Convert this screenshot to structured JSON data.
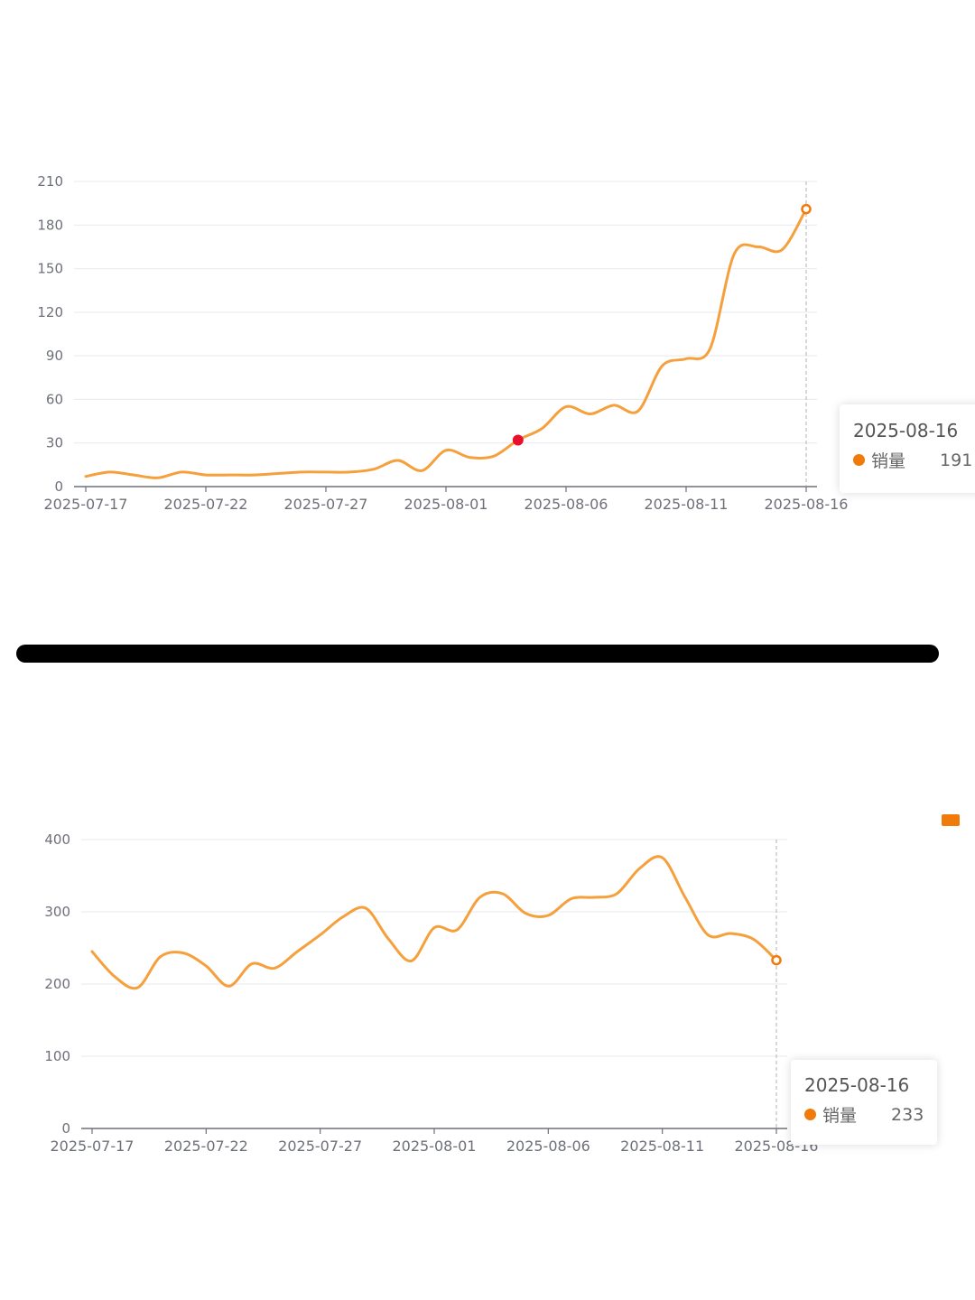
{
  "colors": {
    "line": "#f5a03c",
    "accent": "#f07a0a",
    "highlight_point": "#e8112d",
    "axis": "#6e7079",
    "grid": "#e6e9f0",
    "divider": "#000000"
  },
  "charts": [
    {
      "tooltip": {
        "date": "2025-08-16",
        "series": "销量",
        "value": "191"
      }
    },
    {
      "tooltip": {
        "date": "2025-08-16",
        "series": "销量",
        "value": "233"
      }
    }
  ],
  "chart_data": [
    {
      "type": "line",
      "smooth": true,
      "x_tick_labels": [
        "2025-07-17",
        "2025-07-22",
        "2025-07-27",
        "2025-08-01",
        "2025-08-06",
        "2025-08-11",
        "2025-08-16"
      ],
      "y_tick_labels": [
        "0",
        "30",
        "60",
        "90",
        "120",
        "150",
        "180",
        "210"
      ],
      "ylim": [
        0,
        210
      ],
      "grid": true,
      "x": [
        "2025-07-17",
        "2025-07-18",
        "2025-07-19",
        "2025-07-20",
        "2025-07-21",
        "2025-07-22",
        "2025-07-23",
        "2025-07-24",
        "2025-07-25",
        "2025-07-26",
        "2025-07-27",
        "2025-07-28",
        "2025-07-29",
        "2025-07-30",
        "2025-07-31",
        "2025-08-01",
        "2025-08-02",
        "2025-08-03",
        "2025-08-04",
        "2025-08-05",
        "2025-08-06",
        "2025-08-07",
        "2025-08-08",
        "2025-08-09",
        "2025-08-10",
        "2025-08-11",
        "2025-08-12",
        "2025-08-13",
        "2025-08-14",
        "2025-08-15",
        "2025-08-16"
      ],
      "series": [
        {
          "name": "销量",
          "values": [
            7,
            10,
            8,
            6,
            10,
            8,
            8,
            8,
            9,
            10,
            10,
            10,
            12,
            18,
            11,
            25,
            20,
            21,
            32,
            40,
            55,
            50,
            56,
            52,
            83,
            88,
            95,
            160,
            165,
            163,
            191
          ]
        }
      ],
      "highlight_point": {
        "x": "2025-08-04",
        "y": 32
      },
      "hover": {
        "x": "2025-08-16",
        "y": 191
      }
    },
    {
      "type": "line",
      "smooth": true,
      "x_tick_labels": [
        "2025-07-17",
        "2025-07-22",
        "2025-07-27",
        "2025-08-01",
        "2025-08-06",
        "2025-08-11",
        "2025-08-16"
      ],
      "y_tick_labels": [
        "0",
        "100",
        "200",
        "300",
        "400"
      ],
      "ylim": [
        0,
        400
      ],
      "grid": true,
      "x": [
        "2025-07-17",
        "2025-07-18",
        "2025-07-19",
        "2025-07-20",
        "2025-07-21",
        "2025-07-22",
        "2025-07-23",
        "2025-07-24",
        "2025-07-25",
        "2025-07-26",
        "2025-07-27",
        "2025-07-28",
        "2025-07-29",
        "2025-07-30",
        "2025-07-31",
        "2025-08-01",
        "2025-08-02",
        "2025-08-03",
        "2025-08-04",
        "2025-08-05",
        "2025-08-06",
        "2025-08-07",
        "2025-08-08",
        "2025-08-09",
        "2025-08-10",
        "2025-08-11",
        "2025-08-12",
        "2025-08-13",
        "2025-08-14",
        "2025-08-15",
        "2025-08-16"
      ],
      "series": [
        {
          "name": "销量",
          "values": [
            245,
            210,
            195,
            238,
            243,
            225,
            197,
            228,
            222,
            245,
            268,
            293,
            305,
            262,
            232,
            278,
            275,
            320,
            325,
            298,
            295,
            318,
            320,
            325,
            360,
            375,
            320,
            268,
            270,
            262,
            233
          ]
        }
      ],
      "hover": {
        "x": "2025-08-16",
        "y": 233
      }
    }
  ]
}
